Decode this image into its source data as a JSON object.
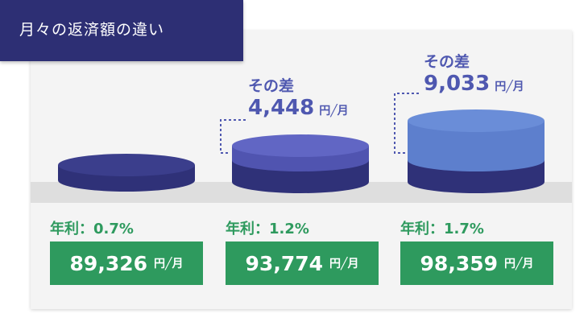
{
  "header": {
    "title": "月々の返済額の違い"
  },
  "colors": {
    "header_bg": "#2d2f74",
    "disk_dark": "#33357e",
    "disk_mid": "#5458b5",
    "disk_light": "#6484d2",
    "accent_green": "#2e9a5e",
    "diff_text": "#4f58b0"
  },
  "plans": [
    {
      "rate_label": "年利：0.7%",
      "payment": "89,326",
      "unit": "円╱月"
    },
    {
      "rate_label": "年利：1.2%",
      "payment": "93,774",
      "unit": "円╱月",
      "diff_label": "その差",
      "diff": "4,448",
      "diff_unit": "円╱月"
    },
    {
      "rate_label": "年利：1.7%",
      "payment": "98,359",
      "unit": "円╱月",
      "diff_label": "その差",
      "diff": "9,033",
      "diff_unit": "円╱月"
    }
  ]
}
